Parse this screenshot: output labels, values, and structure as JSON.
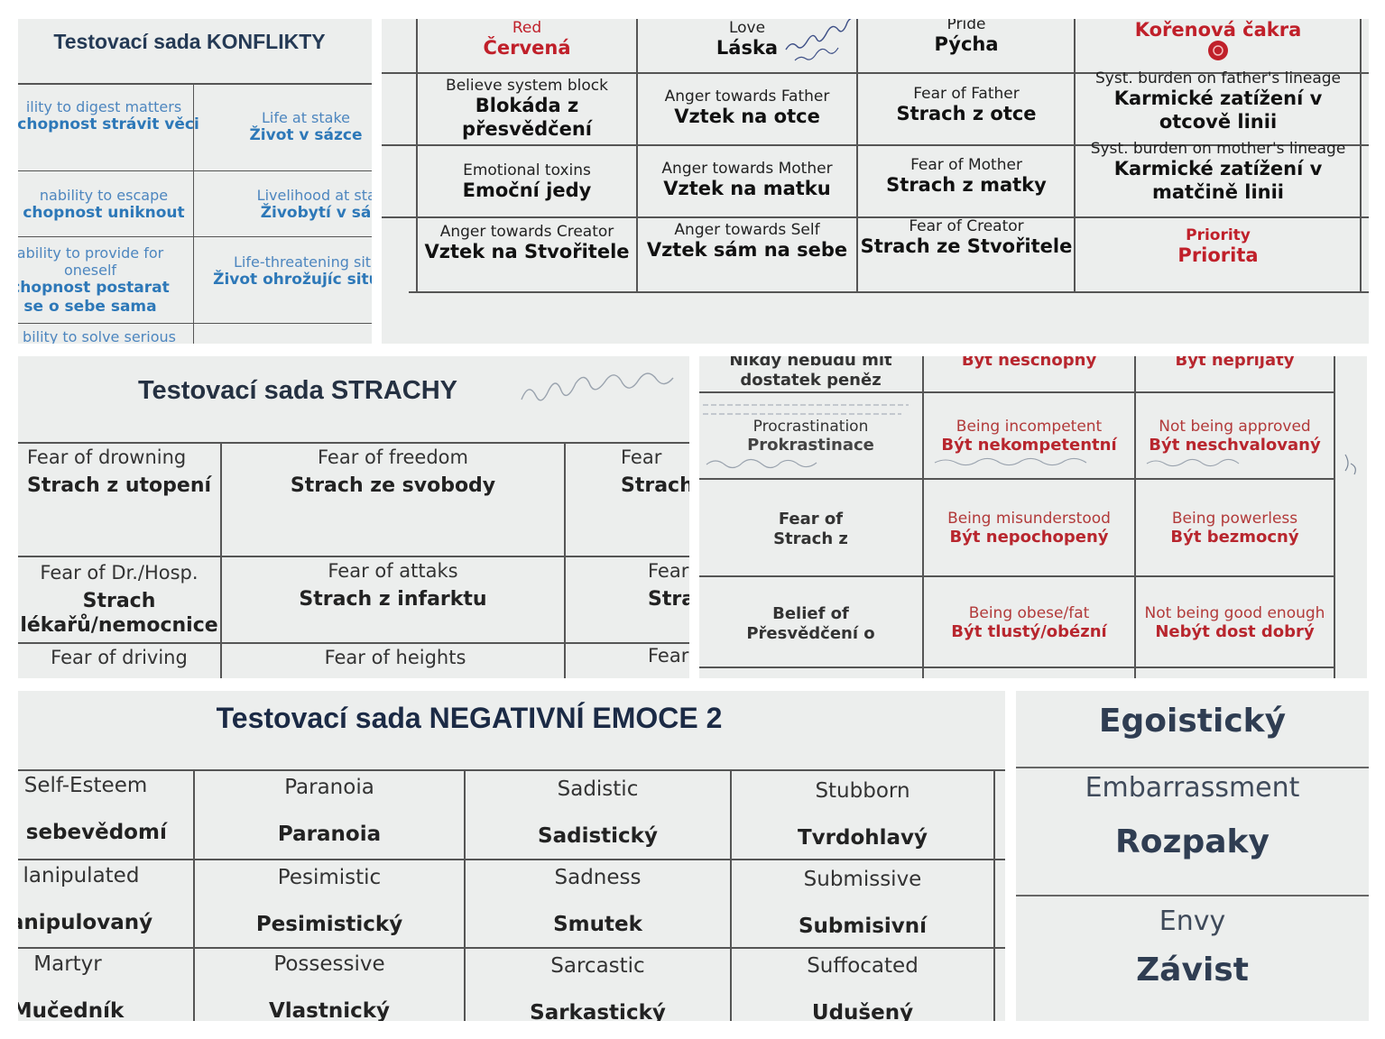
{
  "konflikty": {
    "title": "Testovací sada KONFLIKTY",
    "rows": [
      {
        "left_en": "ility to digest matters",
        "left_cz": "schopnost strávit věci",
        "right_en": "Life at stake",
        "right_cz": "Život v sázce"
      },
      {
        "left_en": "nability to escape",
        "left_cz": "chopnost uniknout",
        "right_en": "Livelihood at stake",
        "right_cz": "Živobytí v sázc"
      },
      {
        "left_en": "ability to provide for oneself",
        "left_cz": "chopnost postarat se o sebe sama",
        "right_en": "Life-threatening situa",
        "right_cz": "Život ohrožujíc situace"
      },
      {
        "left_en": "bility to solve serious"
      }
    ]
  },
  "chakra_table": {
    "rows": [
      [
        {
          "en": "Red",
          "cz": "Červená"
        },
        {
          "en": "Love",
          "cz": "Láska"
        },
        {
          "en": "Pride",
          "cz": "Pýcha"
        },
        {
          "en": "",
          "cz": "Kořenová čakra"
        }
      ],
      [
        {
          "en": "Believe system block",
          "cz": "Blokáda z přesvědčení"
        },
        {
          "en": "Anger towards Father",
          "cz": "Vztek na otce"
        },
        {
          "en": "Fear of Father",
          "cz": "Strach z otce"
        },
        {
          "en": "Syst. burden on father's lineage",
          "cz": "Karmické zatížení v otcově linii"
        }
      ],
      [
        {
          "en": "Emotional toxins",
          "cz": "Emoční jedy"
        },
        {
          "en": "Anger towards Mother",
          "cz": "Vztek na matku"
        },
        {
          "en": "Fear of Mother",
          "cz": "Strach z matky"
        },
        {
          "en": "Syst. burden on mother's lineage",
          "cz": "Karmické zatížení v matčině linii"
        }
      ],
      [
        {
          "en": "Anger towards Creator",
          "cz": "Vztek na Stvořitele"
        },
        {
          "en": "Anger towards Self",
          "cz": "Vztek sám na sebe"
        },
        {
          "en": "Fear of Creator",
          "cz": "Strach ze Stvořitele"
        },
        {
          "en": "Priority",
          "cz": "Priorita"
        }
      ]
    ],
    "colors": {
      "red": "#c0202a",
      "text": "#111111"
    }
  },
  "strachy": {
    "title": "Testovací sada STRACHY",
    "rows": [
      [
        {
          "en": "Fear of drowning",
          "cz": "Strach z utopení"
        },
        {
          "en": "Fear of freedom",
          "cz": "Strach ze svobody"
        },
        {
          "en": "Fear",
          "cz": "Strach"
        }
      ],
      [
        {
          "en": "Fear of Dr./Hosp.",
          "cz": "Strach lékařů/nemocnice"
        },
        {
          "en": "Fear of attaks",
          "cz": "Strach z infarktu"
        },
        {
          "en": "Fear",
          "cz": "Strac"
        }
      ],
      [
        {
          "en": "Fear of driving"
        },
        {
          "en": "Fear of heights"
        },
        {
          "en": "Fear"
        }
      ]
    ]
  },
  "beliefs": {
    "top": [
      {
        "cz": "Nikdy nebudu mít dostatek peněz"
      },
      {
        "cz": "Být neschopný"
      },
      {
        "cz": "Být nepřijatý"
      }
    ],
    "rows": [
      [
        {
          "en": "Procrastination",
          "cz": "Prokrastinace"
        },
        {
          "en": "Being incompetent",
          "cz": "Být nekompetentní"
        },
        {
          "en": "Not being approved",
          "cz": "Být neschvalovaný"
        }
      ],
      [
        {
          "en": "Fear of",
          "cz": "Strach z"
        },
        {
          "en": "Being misunderstood",
          "cz": "Být nepochopený"
        },
        {
          "en": "Being powerless",
          "cz": "Být bezmocný"
        }
      ],
      [
        {
          "en": "Belief of",
          "cz": "Přesvědčení o"
        },
        {
          "en": "Being obese/fat",
          "cz": "Být tlustý/obézní"
        },
        {
          "en": "Not being good enough",
          "cz": "Nebýt dost dobrý"
        }
      ]
    ]
  },
  "negativni_emoce": {
    "title": "Testovací sada NEGATIVNÍ EMOCE 2",
    "rows": [
      [
        {
          "en": "Self-Esteem",
          "cz": "é sebevědomí"
        },
        {
          "en": "Paranoia",
          "cz": "Paranoia"
        },
        {
          "en": "Sadistic",
          "cz": "Sadistický"
        },
        {
          "en": "Stubborn",
          "cz": "Tvrdohlavý"
        }
      ],
      [
        {
          "en": "lanipulated",
          "cz": "anipulovaný"
        },
        {
          "en": "Pesimistic",
          "cz": "Pesimistický"
        },
        {
          "en": "Sadness",
          "cz": "Smutek"
        },
        {
          "en": "Submissive",
          "cz": "Submisivní"
        }
      ],
      [
        {
          "en": "Martyr",
          "cz": "Mučedník"
        },
        {
          "en": "Possessive",
          "cz": "Vlastnický"
        },
        {
          "en": "Sarcastic",
          "cz": "Sarkastický"
        },
        {
          "en": "Suffocated",
          "cz": "Udušený"
        }
      ]
    ]
  },
  "zoom": {
    "top_cz": "Egoistický",
    "rows": [
      {
        "en": "Embarrassment",
        "cz": "Rozpaky"
      },
      {
        "en": "Envy",
        "cz": "Závist"
      }
    ]
  }
}
